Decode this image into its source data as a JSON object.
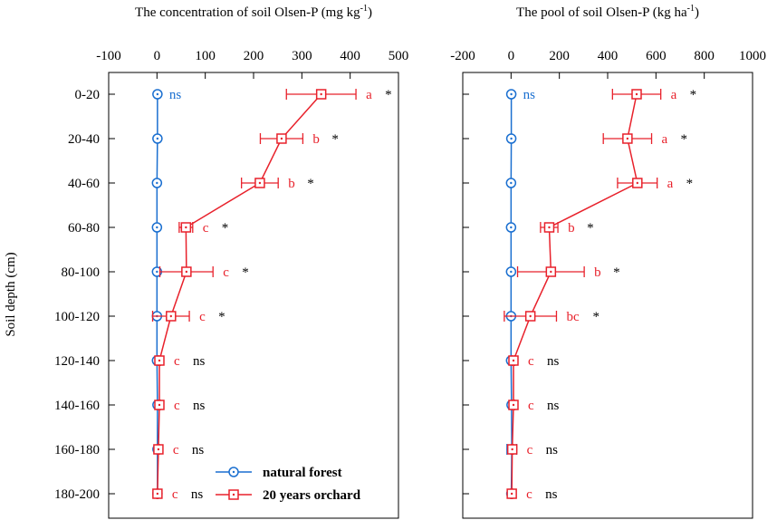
{
  "y_axis_label": "Soil depth (cm)",
  "depth_categories": [
    "0-20",
    "20-40",
    "40-60",
    "60-80",
    "80-100",
    "100-120",
    "120-140",
    "140-160",
    "160-180",
    "180-200"
  ],
  "series_style": {
    "natural_forest": {
      "color": "#1a6fd0",
      "marker": "circle-dot"
    },
    "orchard_20y": {
      "color": "#e8212b",
      "marker": "square-dot"
    }
  },
  "legend": {
    "items": [
      {
        "key": "natural_forest",
        "label": "natural forest"
      },
      {
        "key": "orchard_20y",
        "label": "20 years orchard"
      }
    ],
    "placement": "bottom-right of left panel"
  },
  "chart_data": [
    {
      "type": "line",
      "orientation": "horizontal-values-vertical-depth",
      "title": "The concentration of soil Olsen-P (mg kg",
      "title_unit_sup": "-1",
      "title_close": ")",
      "xlim": [
        -100,
        500
      ],
      "xticks": [
        "-100",
        "0",
        "100",
        "200",
        "300",
        "400",
        "500"
      ],
      "y_categories": [
        "0-20",
        "20-40",
        "40-60",
        "60-80",
        "80-100",
        "100-120",
        "120-140",
        "140-160",
        "160-180",
        "180-200"
      ],
      "series": [
        {
          "key": "natural_forest",
          "values": [
            1,
            1,
            0,
            0,
            0,
            0,
            0,
            1,
            1,
            1
          ],
          "errors": [
            0,
            0,
            0,
            0,
            0,
            0,
            0,
            0,
            0,
            0
          ]
        },
        {
          "key": "orchard_20y",
          "values": [
            340,
            258,
            213,
            60,
            61,
            29,
            5,
            5,
            3,
            1
          ],
          "errors": [
            72,
            44,
            38,
            14,
            55,
            38,
            2,
            2,
            2,
            1
          ]
        }
      ],
      "annotations": {
        "forest_labels": [
          "ns",
          "",
          "",
          "",
          "",
          "",
          "",
          "",
          "",
          ""
        ],
        "orchard_letters": [
          "a",
          "b",
          "b",
          "c",
          "c",
          "c",
          "c",
          "c",
          "c",
          "c"
        ],
        "significance": [
          "*",
          "*",
          "*",
          "*",
          "*",
          "*",
          "ns",
          "ns",
          "ns",
          "ns"
        ]
      }
    },
    {
      "type": "line",
      "orientation": "horizontal-values-vertical-depth",
      "title": "The pool of soil Olsen-P (kg ha",
      "title_unit_sup": "-1",
      "title_close": ")",
      "xlim": [
        -200,
        1000
      ],
      "xticks": [
        "-200",
        "0",
        "200",
        "400",
        "600",
        "800",
        "1000"
      ],
      "y_categories": [
        "0-20",
        "20-40",
        "40-60",
        "60-80",
        "80-100",
        "100-120",
        "120-140",
        "140-160",
        "160-180",
        "180-200"
      ],
      "series": [
        {
          "key": "natural_forest",
          "values": [
            1,
            1,
            0,
            0,
            0,
            0,
            0,
            2,
            3,
            1
          ],
          "errors": [
            0,
            0,
            0,
            0,
            0,
            0,
            0,
            0,
            20,
            0
          ]
        },
        {
          "key": "orchard_20y",
          "values": [
            520,
            482,
            523,
            158,
            165,
            80,
            10,
            10,
            5,
            3
          ],
          "errors": [
            100,
            100,
            82,
            36,
            138,
            108,
            5,
            5,
            4,
            3
          ]
        }
      ],
      "annotations": {
        "forest_labels": [
          "ns",
          "",
          "",
          "",
          "",
          "",
          "",
          "",
          "",
          ""
        ],
        "orchard_letters": [
          "a",
          "a",
          "a",
          "b",
          "b",
          "bc",
          "c",
          "c",
          "c",
          "c"
        ],
        "significance": [
          "*",
          "*",
          "*",
          "*",
          "*",
          "*",
          "ns",
          "ns",
          "ns",
          "ns"
        ]
      }
    }
  ]
}
